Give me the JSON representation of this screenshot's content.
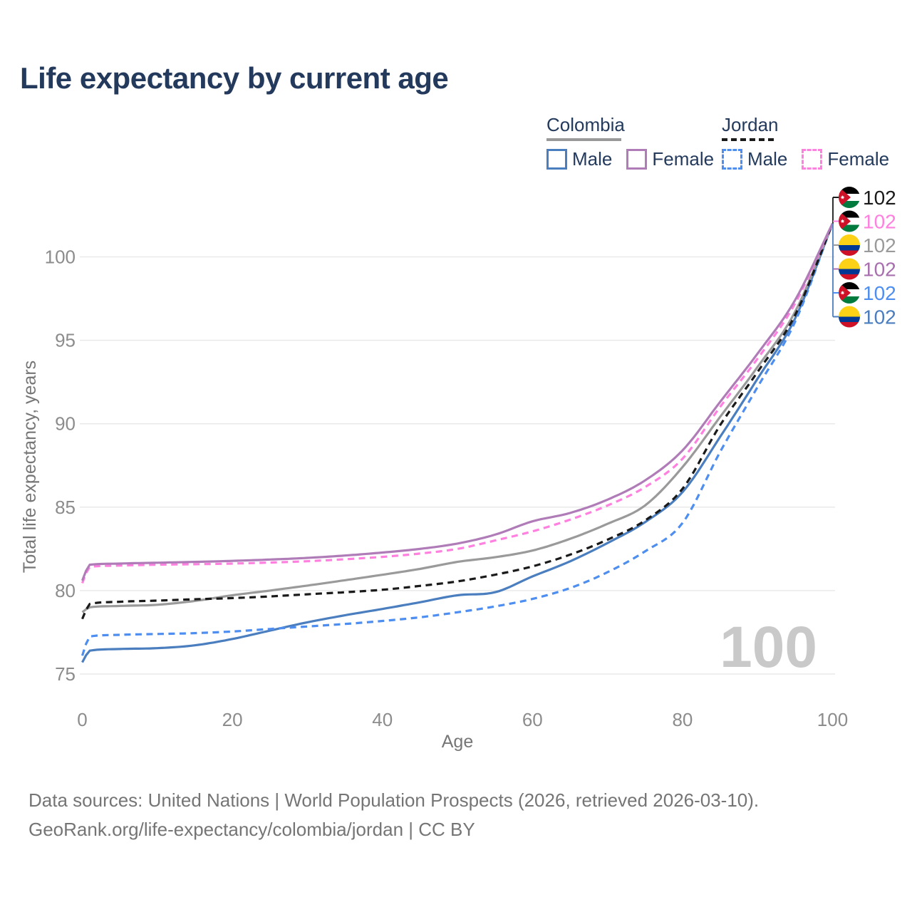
{
  "title": "Life expectancy by current age",
  "watermark": "100",
  "legend": {
    "groups": [
      {
        "country": "Colombia",
        "line_style": "solid",
        "underline_color": "#999999",
        "items": [
          {
            "label": "Male",
            "series": "colombia-male",
            "color": "#4a7ebf"
          },
          {
            "label": "Female",
            "series": "colombia-female",
            "color": "#b07cb8"
          }
        ]
      },
      {
        "country": "Jordan",
        "line_style": "dashed",
        "underline_color": "#1a1a1a",
        "items": [
          {
            "label": "Male",
            "series": "jordan-male",
            "color": "#4d8ef0"
          },
          {
            "label": "Female",
            "series": "jordan-female",
            "color": "#ff80df"
          }
        ]
      }
    ]
  },
  "chart_data": {
    "type": "line",
    "x_label": "Age",
    "y_label": "Total life expectancy, years",
    "xlim": [
      0,
      100
    ],
    "ylim": [
      75,
      103
    ],
    "x_ticks": [
      0,
      20,
      40,
      60,
      80,
      100
    ],
    "y_ticks": [
      75,
      80,
      85,
      90,
      95,
      100
    ],
    "grid": "horizontal",
    "ages": [
      0,
      1,
      5,
      10,
      15,
      20,
      25,
      30,
      35,
      40,
      45,
      50,
      55,
      60,
      65,
      70,
      75,
      80,
      85,
      90,
      95,
      100
    ],
    "series": [
      {
        "id": "colombia-male",
        "name": "Colombia Male",
        "country": "Colombia",
        "sex": "Male",
        "style": "solid",
        "color": "#4a7ebf",
        "values": [
          75.7,
          76.4,
          76.5,
          76.55,
          76.72,
          77.1,
          77.6,
          78.1,
          78.52,
          78.9,
          79.3,
          79.72,
          79.9,
          80.85,
          81.75,
          82.85,
          84.1,
          85.9,
          89.2,
          92.7,
          96.3,
          102
        ]
      },
      {
        "id": "jordan-male",
        "name": "Jordan Male",
        "country": "Jordan",
        "sex": "Male",
        "style": "dashed",
        "color": "#4d8ef0",
        "values": [
          76.1,
          77.25,
          77.35,
          77.4,
          77.45,
          77.55,
          77.7,
          77.85,
          78.0,
          78.18,
          78.4,
          78.7,
          79.05,
          79.5,
          80.15,
          81.1,
          82.35,
          84.05,
          88.3,
          92.2,
          96.1,
          102
        ]
      },
      {
        "id": "colombia-total",
        "name": "Colombia",
        "country": "Colombia",
        "sex": "Both",
        "style": "solid",
        "color": "#9a9a9a",
        "values": [
          78.7,
          79.0,
          79.08,
          79.15,
          79.38,
          79.72,
          80.0,
          80.3,
          80.62,
          80.95,
          81.3,
          81.72,
          82.0,
          82.4,
          83.1,
          84.0,
          85.1,
          87.4,
          90.4,
          93.4,
          96.7,
          102
        ]
      },
      {
        "id": "jordan-total",
        "name": "Jordan",
        "country": "Jordan",
        "sex": "Both",
        "style": "dashed",
        "color": "#1a1a1a",
        "values": [
          78.3,
          79.2,
          79.33,
          79.4,
          79.48,
          79.55,
          79.65,
          79.78,
          79.9,
          80.05,
          80.28,
          80.55,
          80.95,
          81.45,
          82.15,
          83.05,
          84.2,
          86.1,
          89.9,
          93.1,
          96.5,
          102
        ]
      },
      {
        "id": "jordan-female",
        "name": "Jordan Female",
        "country": "Jordan",
        "sex": "Female",
        "style": "dashed",
        "color": "#ff80df",
        "values": [
          80.45,
          81.42,
          81.5,
          81.55,
          81.58,
          81.62,
          81.68,
          81.76,
          81.88,
          82.02,
          82.22,
          82.5,
          83.0,
          83.55,
          84.25,
          85.1,
          86.2,
          87.9,
          91.0,
          93.9,
          97.2,
          102
        ]
      },
      {
        "id": "colombia-female",
        "name": "Colombia Female",
        "country": "Colombia",
        "sex": "Female",
        "style": "solid",
        "color": "#b07cb8",
        "values": [
          80.6,
          81.55,
          81.62,
          81.67,
          81.72,
          81.78,
          81.86,
          81.96,
          82.1,
          82.28,
          82.5,
          82.82,
          83.35,
          84.15,
          84.65,
          85.45,
          86.6,
          88.4,
          91.3,
          94.2,
          97.4,
          102
        ]
      }
    ],
    "end_labels": [
      {
        "flag": "jordan",
        "value": "102",
        "color": "#1a1a1a"
      },
      {
        "flag": "jordan",
        "value": "102",
        "color": "#ff80df"
      },
      {
        "flag": "colombia",
        "value": "102",
        "color": "#9a9a9a"
      },
      {
        "flag": "colombia",
        "value": "102",
        "color": "#a86fae"
      },
      {
        "flag": "jordan",
        "value": "102",
        "color": "#4d8ef0"
      },
      {
        "flag": "colombia",
        "value": "102",
        "color": "#4a7ebf"
      }
    ]
  },
  "footer": {
    "line1": "Data sources: United Nations | World Population Prospects (2026, retrieved 2026-03-10).",
    "line2": "GeoRank.org/life-expectancy/colombia/jordan | CC BY"
  }
}
